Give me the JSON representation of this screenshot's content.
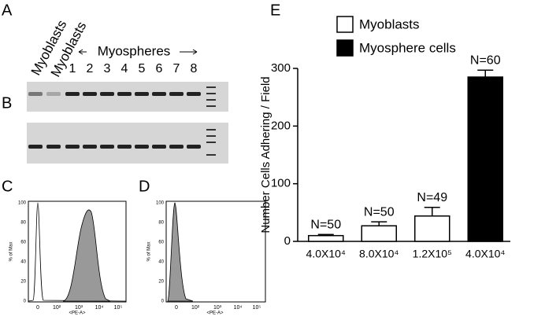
{
  "panels": {
    "A": {
      "label": "A",
      "lanes": [
        "Myoblasts",
        "Myoblasts"
      ],
      "group": "Myospheres",
      "numbers": [
        "1",
        "2",
        "3",
        "4",
        "5",
        "6",
        "7",
        "8"
      ]
    },
    "B": {
      "label": "B"
    },
    "C": {
      "label": "C",
      "ylabel": "% of Max",
      "xlabel": "<PE-A>",
      "yticks": [
        "0",
        "20",
        "40",
        "60",
        "80",
        "100"
      ],
      "xticks": [
        "0",
        "10²",
        "10³",
        "10⁴",
        "10⁵"
      ]
    },
    "D": {
      "label": "D",
      "ylabel": "% of Max",
      "xlabel": "<PE-A>",
      "yticks": [
        "0",
        "20",
        "40",
        "60",
        "80",
        "100"
      ],
      "xticks": [
        "0",
        "10²",
        "10³",
        "10⁴",
        "10⁵"
      ]
    }
  },
  "chart_data": {
    "type": "bar",
    "panel_label": "E",
    "ylabel": "Number Cells Adhering / Field",
    "categories": [
      "4.0X10⁴",
      "8.0X10⁴",
      "1.2X10⁵",
      "4.0X10⁴"
    ],
    "series": [
      {
        "name": "Myoblasts",
        "color": "#ffffff",
        "values": [
          10,
          27,
          44,
          null
        ],
        "errors": [
          2,
          7,
          15,
          null
        ]
      },
      {
        "name": "Myosphere cells",
        "color": "#000000",
        "values": [
          null,
          null,
          null,
          285
        ],
        "errors": [
          null,
          null,
          null,
          12
        ]
      }
    ],
    "annotations": [
      "N=50",
      "N=50",
      "N=49",
      "N=60"
    ],
    "ylim": [
      0,
      300
    ],
    "yticks": [
      0,
      100,
      200,
      300
    ]
  }
}
